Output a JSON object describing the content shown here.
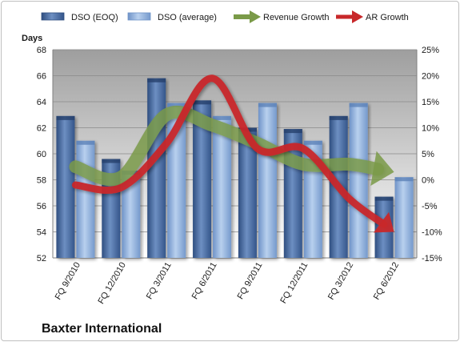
{
  "chart_data": {
    "type": "bar",
    "title": "Baxter International",
    "ylabel": "Days",
    "categories": [
      "FQ 9/2010",
      "FQ 12/2010",
      "FQ 3/2011",
      "FQ 6/2011",
      "FQ 9/2011",
      "FQ 12/2011",
      "FQ 3/2012",
      "FQ 6/2012"
    ],
    "series": [
      {
        "name": "DSO (EOQ)",
        "type": "bar",
        "axis": "left",
        "color": "#4a6a9c",
        "values": [
          62.9,
          59.6,
          65.8,
          64.1,
          62.0,
          61.9,
          62.9,
          56.7
        ]
      },
      {
        "name": "DSO (average)",
        "type": "bar",
        "axis": "left",
        "color": "#8fb0dc",
        "values": [
          61.0,
          58.7,
          63.9,
          62.9,
          63.9,
          61.0,
          63.9,
          58.2
        ]
      },
      {
        "name": "Revenue Growth",
        "type": "arrow-line",
        "axis": "right",
        "color": "#7a9a48",
        "values": [
          2.5,
          0.5,
          12.5,
          10.5,
          7.0,
          3.0,
          3.0,
          1.5
        ]
      },
      {
        "name": "AR Growth",
        "type": "arrow-line",
        "axis": "right",
        "color": "#c8282a",
        "values": [
          -1.0,
          -1.5,
          7.0,
          19.5,
          6.0,
          6.0,
          -3.5,
          -10.0
        ]
      }
    ],
    "y_left": {
      "min": 52,
      "max": 68,
      "ticks": [
        "52",
        "54",
        "56",
        "58",
        "60",
        "62",
        "64",
        "66",
        "68"
      ]
    },
    "y_right": {
      "min": -15,
      "max": 25,
      "ticks": [
        "-15%",
        "-10%",
        "-5%",
        "0%",
        "5%",
        "10%",
        "15%",
        "20%",
        "25%"
      ]
    },
    "grid": true,
    "legend_position": "top"
  }
}
